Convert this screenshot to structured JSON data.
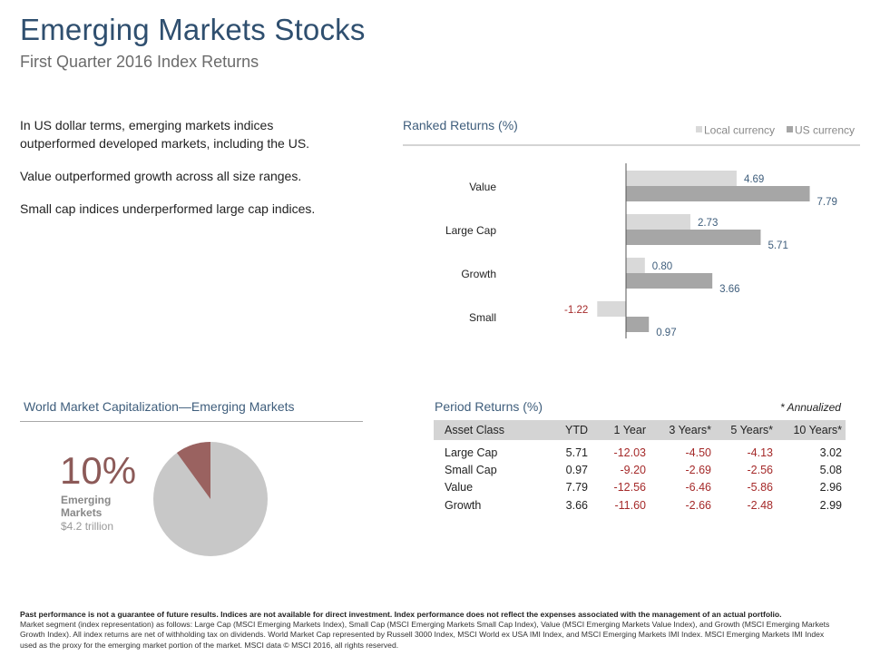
{
  "header": {
    "title": "Emerging Markets Stocks",
    "subtitle": "First Quarter 2016 Index Returns"
  },
  "bullets": [
    "In US dollar terms, emerging markets indices outperformed developed markets, including the US.",
    "Value outperformed growth across all size ranges.",
    "Small cap indices underperformed large cap indices."
  ],
  "colors": {
    "local": "#d9d9d9",
    "us": "#a6a6a6",
    "negative": "#a52a2a",
    "label_blue": "#3f5e7c",
    "pie_main": "#c8c8c8",
    "pie_em": "#9a6260"
  },
  "ranked": {
    "title": "Ranked Returns (%)",
    "legend_local": "Local currency",
    "legend_us": "US currency"
  },
  "chart_data": [
    {
      "type": "bar",
      "orientation": "horizontal",
      "title": "Ranked Returns (%)",
      "categories": [
        "Value",
        "Large Cap",
        "Growth",
        "Small"
      ],
      "series": [
        {
          "name": "Local currency",
          "values": [
            4.69,
            2.73,
            0.8,
            -1.22
          ]
        },
        {
          "name": "US currency",
          "values": [
            7.79,
            5.71,
            3.66,
            0.97
          ]
        }
      ],
      "value_labels": {
        "local": [
          "4.69",
          "2.73",
          "0.80",
          "-1.22"
        ],
        "us": [
          "7.79",
          "5.71",
          "3.66",
          "0.97"
        ]
      },
      "xlim": [
        -1.5,
        8.5
      ],
      "legend": "top-right"
    },
    {
      "type": "pie",
      "title": "World Market Capitalization—Emerging Markets",
      "slices": [
        {
          "label": "Emerging Markets",
          "value": 10
        },
        {
          "label": "",
          "value": 90
        }
      ]
    }
  ],
  "world_cap": {
    "title": "World Market Capitalization—Emerging Markets",
    "percent": "10%",
    "label_line1": "Emerging",
    "label_line2": "Markets",
    "amount": "$4.2 trillion",
    "em_share": 0.1
  },
  "period": {
    "title": "Period Returns (%)",
    "note": "* Annualized",
    "headers": [
      "Asset Class",
      "YTD",
      "1 Year",
      "3 Years*",
      "5 Years*",
      "10 Years*"
    ],
    "rows": [
      {
        "cells": [
          "Large Cap",
          "5.71",
          "-12.03",
          "-4.50",
          "-4.13",
          "3.02"
        ]
      },
      {
        "cells": [
          "Small Cap",
          "0.97",
          "-9.20",
          "-2.69",
          "-2.56",
          "5.08"
        ]
      },
      {
        "cells": [
          "Value",
          "7.79",
          "-12.56",
          "-6.46",
          "-5.86",
          "2.96"
        ]
      },
      {
        "cells": [
          "Growth",
          "3.66",
          "-11.60",
          "-2.66",
          "-2.48",
          "2.99"
        ]
      }
    ]
  },
  "footer": {
    "bold": "Past performance is not a guarantee of future results. Indices are not available for direct investment. Index performance does not reflect the expenses associated with the management of an actual portfolio.",
    "text": "Market segment (index representation) as follows: Large Cap (MSCI Emerging Markets Index), Small Cap (MSCI Emerging Markets Small Cap Index), Value (MSCI Emerging Markets Value Index), and Growth (MSCI Emerging Markets Growth Index). All index returns are net of withholding tax on dividends. World Market Cap represented by Russell 3000 Index, MSCI World ex USA IMI Index, and MSCI Emerging Markets IMI Index. MSCI Emerging Markets IMI Index used as the proxy for the emerging market portion of the market. MSCI data © MSCI 2016, all rights reserved."
  }
}
